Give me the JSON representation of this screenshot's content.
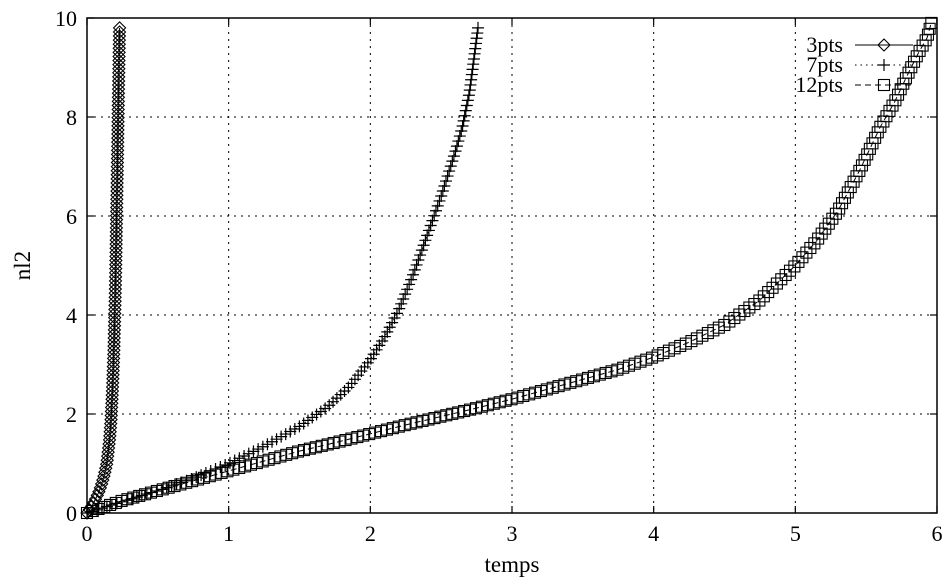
{
  "chart_data": {
    "type": "line",
    "title": "",
    "xlabel": "temps",
    "ylabel": "nl2",
    "xlim": [
      0,
      6
    ],
    "ylim": [
      0,
      10
    ],
    "xticks": [
      "0",
      "1",
      "2",
      "3",
      "4",
      "5",
      "6"
    ],
    "yticks": [
      "0",
      "2",
      "4",
      "6",
      "8",
      "10"
    ],
    "grid": true,
    "legend_position": "top-right",
    "series": [
      {
        "name": "3pts",
        "marker": "diamond",
        "line": "solid",
        "x": [
          0.0,
          0.02,
          0.04,
          0.06,
          0.08,
          0.1,
          0.12,
          0.14,
          0.16,
          0.17,
          0.18,
          0.19,
          0.2,
          0.205,
          0.21,
          0.215,
          0.22,
          0.225,
          0.23
        ],
        "y": [
          0.0,
          0.08,
          0.17,
          0.28,
          0.4,
          0.55,
          0.75,
          1.0,
          1.5,
          1.9,
          2.5,
          3.3,
          4.5,
          5.3,
          6.2,
          7.1,
          8.1,
          9.0,
          9.8
        ]
      },
      {
        "name": "7pts",
        "marker": "plus",
        "line": "dotted",
        "x": [
          0.0,
          0.25,
          0.5,
          0.75,
          1.0,
          1.25,
          1.5,
          1.7,
          1.85,
          2.0,
          2.1,
          2.2,
          2.3,
          2.4,
          2.5,
          2.6,
          2.65,
          2.7,
          2.76
        ],
        "y": [
          0.0,
          0.23,
          0.45,
          0.7,
          1.0,
          1.35,
          1.75,
          2.15,
          2.55,
          3.1,
          3.55,
          4.1,
          4.8,
          5.6,
          6.4,
          7.3,
          7.8,
          8.5,
          9.8
        ]
      },
      {
        "name": "12pts",
        "marker": "square",
        "line": "dashed",
        "x": [
          0.0,
          0.25,
          0.5,
          0.75,
          1.0,
          1.25,
          1.5,
          1.75,
          2.0,
          2.25,
          2.5,
          2.75,
          3.0,
          3.25,
          3.5,
          3.75,
          4.0,
          4.25,
          4.5,
          4.75,
          5.0,
          5.15,
          5.3,
          5.45,
          5.6,
          5.7,
          5.8,
          5.87,
          5.93,
          5.96
        ],
        "y": [
          0.0,
          0.25,
          0.45,
          0.65,
          0.85,
          1.05,
          1.25,
          1.42,
          1.6,
          1.78,
          1.95,
          2.12,
          2.3,
          2.5,
          2.7,
          2.9,
          3.15,
          3.45,
          3.8,
          4.3,
          5.0,
          5.5,
          6.1,
          6.9,
          7.8,
          8.3,
          8.9,
          9.3,
          9.6,
          9.9
        ]
      }
    ]
  }
}
